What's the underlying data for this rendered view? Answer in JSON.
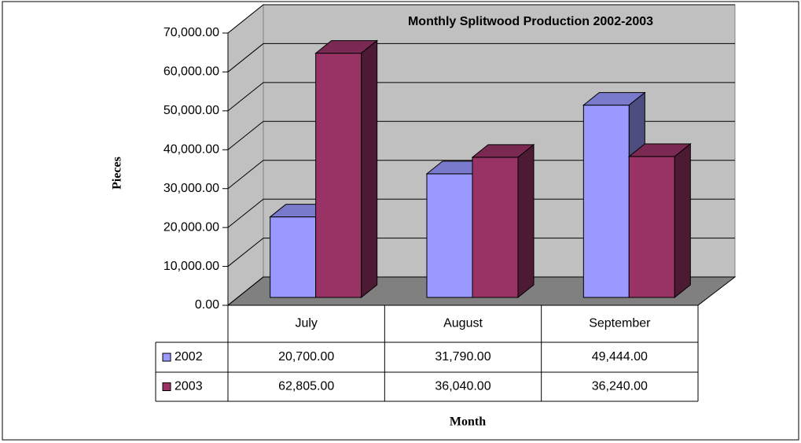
{
  "chart_data": {
    "type": "bar3d",
    "title": "Monthly Splitwood Production 2002-2003",
    "y_label": "Pieces",
    "x_label": "Month",
    "categories": [
      "July",
      "August",
      "September"
    ],
    "series": [
      {
        "name": "2002",
        "color": "#9999ff",
        "values": [
          20700,
          31790,
          49444
        ],
        "value_labels": [
          "20,700.00",
          "31,790.00",
          "49,444.00"
        ]
      },
      {
        "name": "2003",
        "color": "#993366",
        "values": [
          62805,
          36040,
          36240
        ],
        "value_labels": [
          "62,805.00",
          "36,040.00",
          "36,240.00"
        ]
      }
    ],
    "ylim": [
      0,
      70000
    ],
    "yticks": [
      {
        "value": 0,
        "label": "0.00"
      },
      {
        "value": 10000,
        "label": "10,000.00"
      },
      {
        "value": 20000,
        "label": "20,000.00"
      },
      {
        "value": 30000,
        "label": "30,000.00"
      },
      {
        "value": 40000,
        "label": "40,000.00"
      },
      {
        "value": 50000,
        "label": "50,000.00"
      },
      {
        "value": 60000,
        "label": "60,000.00"
      },
      {
        "value": 70000,
        "label": "70,000.00"
      }
    ],
    "grid": true
  }
}
